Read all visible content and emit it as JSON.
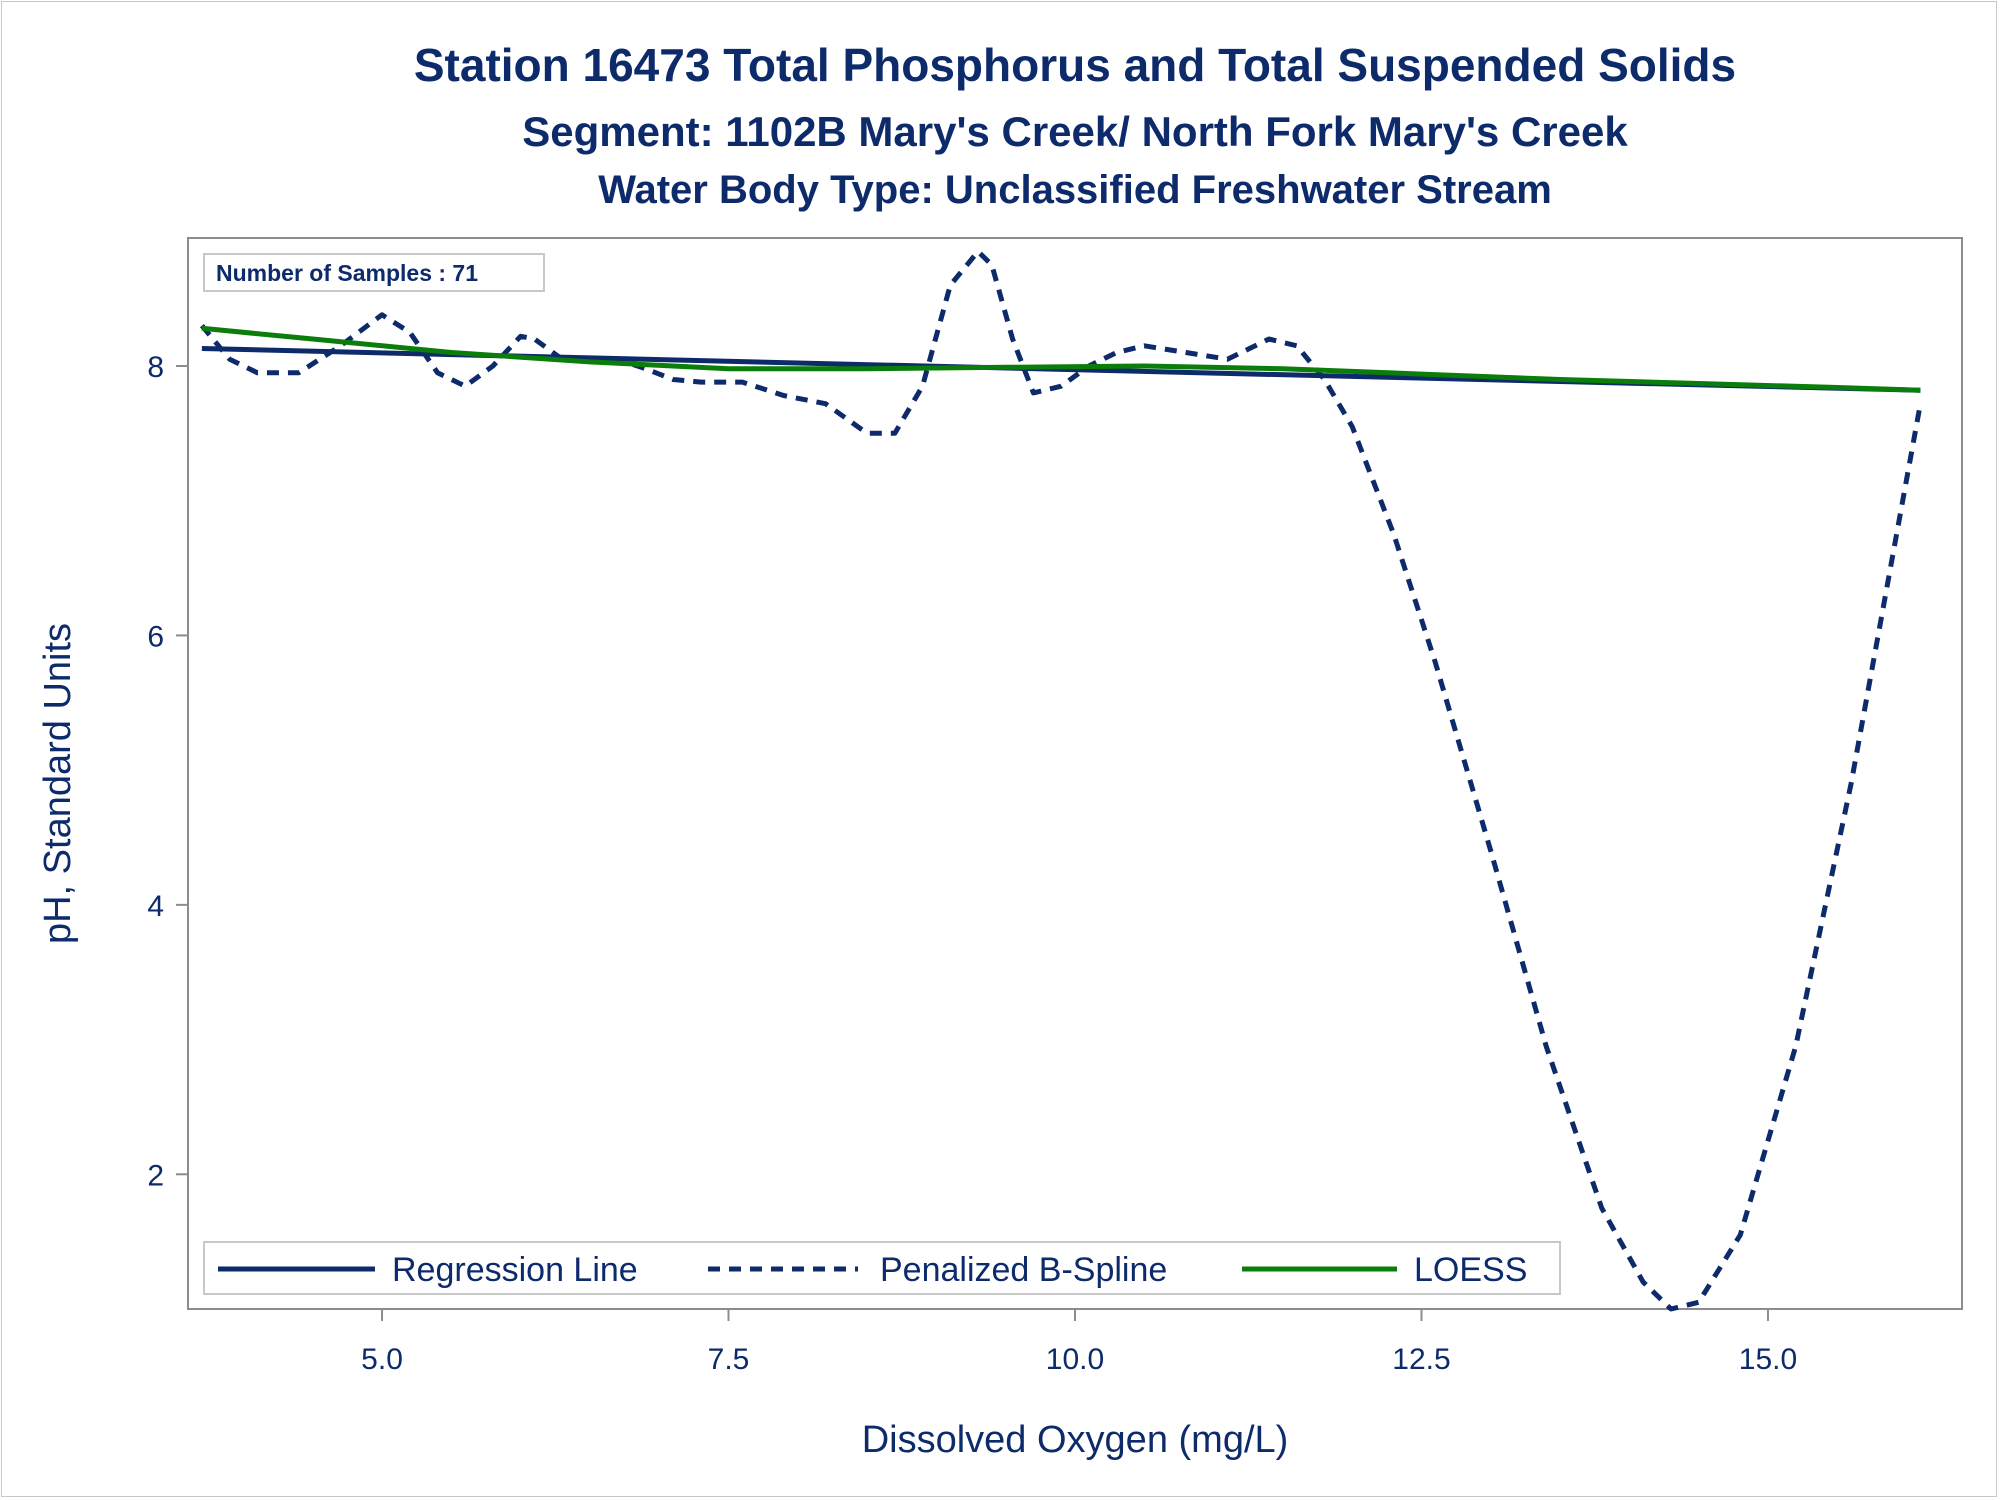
{
  "titles": {
    "line1": "Station 16473  Total Phosphorus and Total Suspended Solids",
    "line2": "Segment: 1102B  Mary's Creek/ North Fork Mary's Creek",
    "line3": "Water Body Type: Unclassified Freshwater Stream"
  },
  "inset_label": "Number of Samples : 71",
  "colors": {
    "regression": "#0d2a6b",
    "spline": "#0d2a6b",
    "loess": "#0a7d0a",
    "text": "#0d2a6b",
    "frame": "#8c8c8c"
  },
  "chart_data": {
    "type": "line",
    "xlabel": "Dissolved Oxygen (mg/L)",
    "ylabel": "pH, Standard Units",
    "xlim": [
      3.6,
      16.4
    ],
    "ylim": [
      1.0,
      8.95
    ],
    "xticks": [
      5.0,
      7.5,
      10.0,
      12.5,
      15.0
    ],
    "xtick_labels": [
      "5.0",
      "7.5",
      "10.0",
      "12.5",
      "15.0"
    ],
    "yticks": [
      2,
      4,
      6,
      8
    ],
    "ytick_labels": [
      "2",
      "4",
      "6",
      "8"
    ],
    "grid": false,
    "legend_position": "bottom-left-inside",
    "series": [
      {
        "name": "Regression Line",
        "style": "solid",
        "color": "#0d2a6b",
        "x": [
          3.7,
          16.1
        ],
        "y": [
          8.13,
          7.82
        ]
      },
      {
        "name": "Penalized B-Spline",
        "style": "dashed",
        "color": "#0d2a6b",
        "x": [
          3.7,
          3.9,
          4.1,
          4.4,
          4.7,
          5.0,
          5.2,
          5.4,
          5.6,
          5.8,
          6.0,
          6.1,
          6.3,
          6.5,
          6.7,
          6.9,
          7.1,
          7.3,
          7.6,
          7.9,
          8.2,
          8.5,
          8.7,
          8.9,
          9.1,
          9.3,
          9.4,
          9.55,
          9.7,
          9.9,
          10.1,
          10.3,
          10.5,
          10.8,
          11.1,
          11.4,
          11.6,
          11.8,
          12.0,
          12.3,
          12.6,
          13.0,
          13.4,
          13.8,
          14.1,
          14.3,
          14.5,
          14.8,
          15.2,
          15.6,
          16.1
        ],
        "y": [
          8.3,
          8.05,
          7.95,
          7.95,
          8.15,
          8.38,
          8.25,
          7.95,
          7.85,
          8.0,
          8.22,
          8.2,
          8.05,
          8.05,
          8.05,
          7.98,
          7.9,
          7.88,
          7.88,
          7.78,
          7.72,
          7.5,
          7.5,
          7.85,
          8.6,
          8.85,
          8.75,
          8.2,
          7.8,
          7.85,
          8.0,
          8.1,
          8.15,
          8.1,
          8.05,
          8.2,
          8.15,
          7.9,
          7.55,
          6.75,
          5.8,
          4.4,
          2.95,
          1.75,
          1.2,
          1.0,
          1.05,
          1.55,
          2.95,
          4.9,
          7.72
        ]
      },
      {
        "name": "LOESS",
        "style": "solid",
        "color": "#0a7d0a",
        "x": [
          3.7,
          4.5,
          5.5,
          6.5,
          7.5,
          8.5,
          9.5,
          10.5,
          11.5,
          12.5,
          13.5,
          14.5,
          15.5,
          16.1
        ],
        "y": [
          8.28,
          8.2,
          8.1,
          8.03,
          7.98,
          7.98,
          7.99,
          8.0,
          7.98,
          7.94,
          7.9,
          7.87,
          7.84,
          7.82
        ]
      }
    ]
  }
}
